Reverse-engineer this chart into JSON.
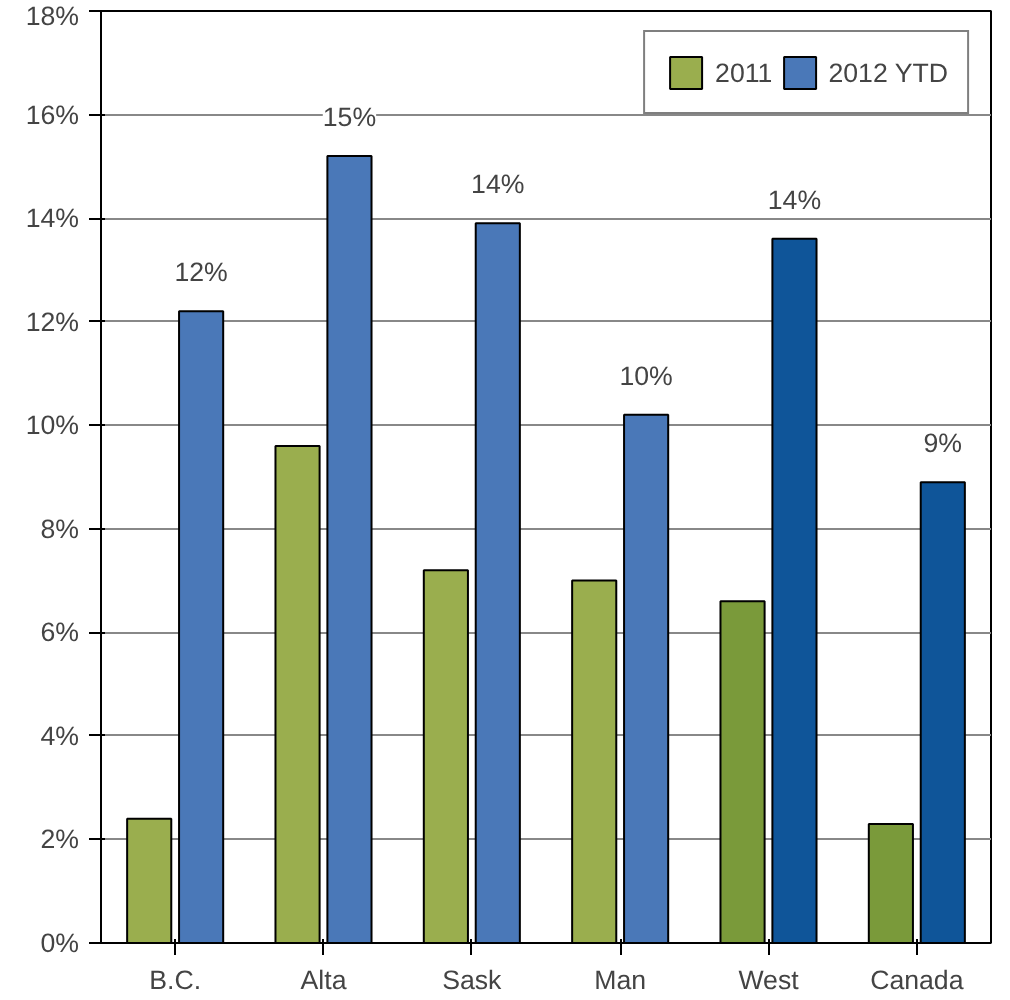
{
  "chart_data": {
    "type": "bar",
    "categories": [
      "B.C.",
      "Alta",
      "Sask",
      "Man",
      "West",
      "Canada"
    ],
    "series": [
      {
        "name": "2011",
        "color": "#9aae4e",
        "colors": [
          "#9aae4e",
          "#9aae4e",
          "#9aae4e",
          "#9aae4e",
          "#7a9a3a",
          "#7a9a3a"
        ],
        "values": [
          2.4,
          9.6,
          7.2,
          7.0,
          6.6,
          2.3
        ]
      },
      {
        "name": "2012 YTD",
        "color": "#4a78b8",
        "colors": [
          "#4a78b8",
          "#4a78b8",
          "#4a78b8",
          "#4a78b8",
          "#0f5599",
          "#0f5599"
        ],
        "values": [
          12.2,
          15.2,
          13.9,
          10.2,
          13.6,
          8.9
        ],
        "value_labels": [
          "12%",
          "15%",
          "14%",
          "10%",
          "14%",
          "9%"
        ]
      }
    ],
    "ylim": [
      0,
      18
    ],
    "yticks": [
      {
        "value": 0,
        "label": "0%"
      },
      {
        "value": 2,
        "label": "2%"
      },
      {
        "value": 4,
        "label": "4%"
      },
      {
        "value": 6,
        "label": "6%"
      },
      {
        "value": 8,
        "label": "8%"
      },
      {
        "value": 10,
        "label": "10%"
      },
      {
        "value": 12,
        "label": "12%"
      },
      {
        "value": 14,
        "label": "14%"
      },
      {
        "value": 16,
        "label": "16%"
      },
      {
        "value": 18,
        "label": "18%"
      }
    ],
    "grid": "y",
    "legend": "top right"
  }
}
